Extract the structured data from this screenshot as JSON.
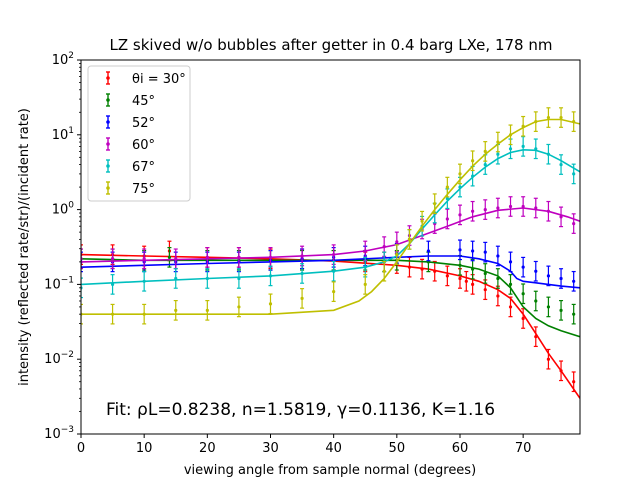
{
  "chart_data": {
    "type": "scatter",
    "title": "LZ skived w/o bubbles after getter in 0.4 barg LXe, 178 nm",
    "xlabel": "viewing angle from sample normal (degrees)",
    "ylabel": "intensity (reflected rate/str)/(incident rate)",
    "xlim": [
      0,
      79
    ],
    "ylim": [
      0.001,
      100
    ],
    "yscale": "log",
    "x_ticks": [
      "0",
      "10",
      "20",
      "30",
      "40",
      "50",
      "60",
      "70"
    ],
    "y_tick_exponents": [
      -3,
      -2,
      -1,
      0,
      1,
      2
    ],
    "grid": false,
    "legend_position": "top-left",
    "annotation": "Fit: ρL=0.8238, n=1.5819, γ=0.1136, K=1.16",
    "series": [
      {
        "name": "θi = 30°",
        "color": "#ff0000",
        "x": [
          0,
          5,
          10,
          14,
          20,
          25,
          30,
          35,
          40,
          45,
          48,
          50,
          52,
          54,
          56,
          58,
          60,
          61,
          62,
          64,
          66,
          68,
          70,
          72,
          74,
          76,
          78
        ],
        "y": [
          0.25,
          0.25,
          0.24,
          0.28,
          0.23,
          0.23,
          0.22,
          0.22,
          0.21,
          0.2,
          0.2,
          0.19,
          0.17,
          0.16,
          0.15,
          0.13,
          0.12,
          0.11,
          0.1,
          0.085,
          0.07,
          0.05,
          0.035,
          0.02,
          0.01,
          0.007,
          0.005
        ],
        "fit_x": [
          0,
          10,
          20,
          30,
          40,
          50,
          55,
          60,
          63,
          66,
          68,
          70,
          72,
          74,
          76,
          79
        ],
        "fit_y": [
          0.25,
          0.24,
          0.23,
          0.22,
          0.205,
          0.18,
          0.16,
          0.13,
          0.11,
          0.085,
          0.065,
          0.04,
          0.022,
          0.012,
          0.007,
          0.003
        ]
      },
      {
        "name": "45°",
        "color": "#008000",
        "x": [
          0,
          5,
          10,
          14,
          20,
          25,
          30,
          35,
          40,
          45,
          50,
          55,
          60,
          62,
          64,
          66,
          68,
          70,
          72,
          74,
          76,
          78
        ],
        "y": [
          0.22,
          0.22,
          0.21,
          0.23,
          0.21,
          0.21,
          0.21,
          0.21,
          0.21,
          0.21,
          0.21,
          0.2,
          0.18,
          0.16,
          0.14,
          0.12,
          0.1,
          0.075,
          0.06,
          0.05,
          0.045,
          0.04
        ],
        "fit_x": [
          0,
          10,
          20,
          30,
          40,
          50,
          55,
          60,
          63,
          66,
          68,
          70,
          72,
          74,
          76,
          79
        ],
        "fit_y": [
          0.22,
          0.21,
          0.21,
          0.21,
          0.21,
          0.21,
          0.2,
          0.18,
          0.16,
          0.13,
          0.09,
          0.05,
          0.035,
          0.028,
          0.024,
          0.02
        ]
      },
      {
        "name": "52°",
        "color": "#0000ff",
        "x": [
          0,
          5,
          10,
          15,
          20,
          25,
          30,
          35,
          40,
          45,
          50,
          55,
          60,
          62,
          64,
          66,
          68,
          70,
          72,
          74,
          76,
          78
        ],
        "y": [
          0.2,
          0.2,
          0.2,
          0.2,
          0.2,
          0.2,
          0.21,
          0.22,
          0.23,
          0.24,
          0.26,
          0.28,
          0.29,
          0.28,
          0.27,
          0.24,
          0.2,
          0.17,
          0.15,
          0.13,
          0.12,
          0.11
        ],
        "fit_x": [
          0,
          10,
          20,
          30,
          40,
          50,
          55,
          60,
          63,
          66,
          68,
          69,
          70,
          72,
          74,
          76,
          79
        ],
        "fit_y": [
          0.17,
          0.18,
          0.19,
          0.2,
          0.21,
          0.23,
          0.24,
          0.24,
          0.22,
          0.19,
          0.15,
          0.12,
          0.11,
          0.105,
          0.1,
          0.095,
          0.09
        ]
      },
      {
        "name": "60°",
        "color": "#bf00bf",
        "x": [
          0,
          5,
          10,
          15,
          20,
          25,
          30,
          35,
          40,
          45,
          48,
          50,
          52,
          54,
          56,
          58,
          60,
          62,
          64,
          66,
          68,
          70,
          72,
          74,
          76,
          78
        ],
        "y": [
          0.22,
          0.22,
          0.22,
          0.22,
          0.23,
          0.23,
          0.23,
          0.24,
          0.25,
          0.28,
          0.32,
          0.37,
          0.45,
          0.55,
          0.65,
          0.75,
          0.85,
          0.95,
          1.0,
          1.05,
          1.1,
          1.1,
          1.05,
          0.95,
          0.8,
          0.65
        ],
        "fit_x": [
          0,
          10,
          20,
          30,
          40,
          45,
          50,
          54,
          58,
          62,
          66,
          70,
          74,
          77,
          79
        ],
        "fit_y": [
          0.2,
          0.21,
          0.22,
          0.23,
          0.25,
          0.28,
          0.34,
          0.45,
          0.6,
          0.8,
          0.98,
          1.05,
          0.95,
          0.8,
          0.7
        ]
      },
      {
        "name": "67°",
        "color": "#00bfbf",
        "x": [
          0,
          5,
          10,
          15,
          20,
          25,
          30,
          35,
          40,
          45,
          48,
          50,
          52,
          54,
          56,
          58,
          60,
          62,
          64,
          66,
          68,
          70,
          72,
          74,
          76,
          78
        ],
        "y": [
          0.09,
          0.1,
          0.11,
          0.12,
          0.12,
          0.12,
          0.13,
          0.14,
          0.15,
          0.17,
          0.2,
          0.25,
          0.4,
          0.6,
          0.9,
          1.4,
          2.0,
          2.8,
          4.0,
          5.5,
          6.5,
          7.0,
          6.5,
          5.5,
          4.0,
          3.0
        ],
        "fit_x": [
          0,
          10,
          20,
          30,
          40,
          45,
          48,
          50,
          52,
          54,
          56,
          58,
          60,
          62,
          64,
          66,
          68,
          70,
          72,
          74,
          76,
          79
        ],
        "fit_y": [
          0.1,
          0.11,
          0.12,
          0.13,
          0.15,
          0.17,
          0.2,
          0.24,
          0.35,
          0.55,
          0.85,
          1.3,
          1.9,
          2.7,
          3.7,
          4.8,
          5.8,
          6.3,
          6.2,
          5.5,
          4.5,
          3.2
        ]
      },
      {
        "name": "75°",
        "color": "#bfbf00",
        "x": [
          0,
          5,
          10,
          15,
          20,
          25,
          30,
          35,
          40,
          45,
          48,
          50,
          52,
          54,
          56,
          58,
          60,
          62,
          64,
          66,
          68,
          70,
          72,
          74,
          76,
          78
        ],
        "y": [
          0.04,
          0.04,
          0.04,
          0.045,
          0.045,
          0.05,
          0.055,
          0.065,
          0.08,
          0.1,
          0.15,
          0.25,
          0.4,
          0.7,
          1.2,
          2.0,
          3.0,
          4.5,
          6.0,
          8.0,
          10.0,
          13.0,
          15.0,
          17.0,
          17.0,
          15.0
        ],
        "fit_x": [
          0,
          10,
          20,
          30,
          40,
          44,
          46,
          48,
          50,
          52,
          54,
          56,
          58,
          60,
          62,
          64,
          66,
          68,
          70,
          72,
          74,
          76,
          79
        ],
        "fit_y": [
          0.04,
          0.04,
          0.04,
          0.04,
          0.045,
          0.06,
          0.08,
          0.12,
          0.2,
          0.35,
          0.6,
          1.0,
          1.6,
          2.5,
          3.8,
          5.5,
          7.5,
          10.0,
          12.5,
          15.0,
          16.0,
          16.0,
          14.0
        ]
      }
    ]
  }
}
